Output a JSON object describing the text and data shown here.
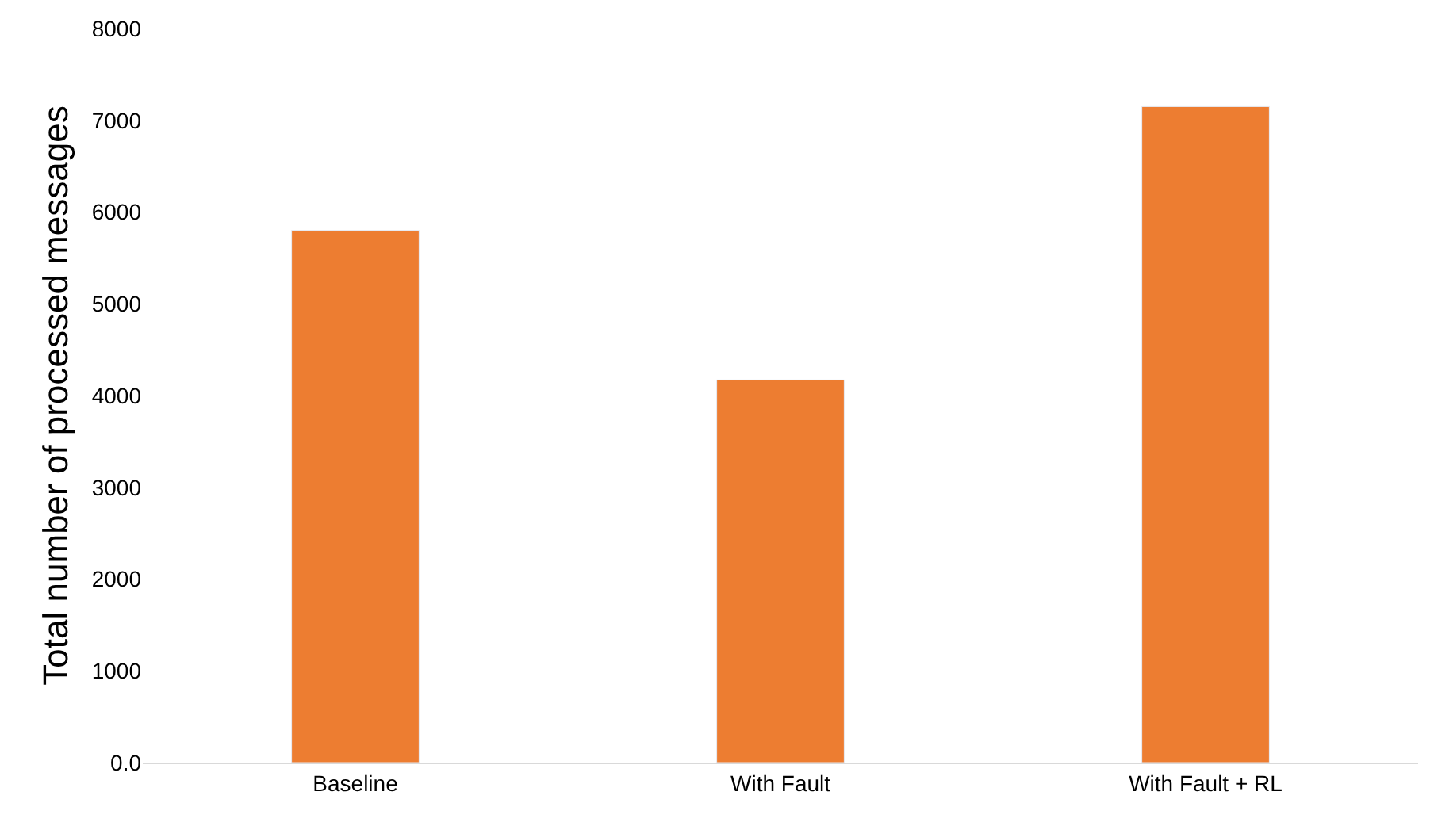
{
  "chart_data": {
    "type": "bar",
    "ylabel": "Total number of processed messages",
    "categories": [
      "Baseline",
      "With Fault",
      "With Fault + RL"
    ],
    "values": [
      5800,
      4170,
      7150
    ],
    "color": "#ed7d31",
    "ylim": [
      0,
      8000
    ],
    "yticks": [
      {
        "value": 0,
        "label": "0.0"
      },
      1000,
      2000,
      3000,
      4000,
      5000,
      6000,
      7000,
      8000
    ],
    "grid": false,
    "legend": false
  }
}
